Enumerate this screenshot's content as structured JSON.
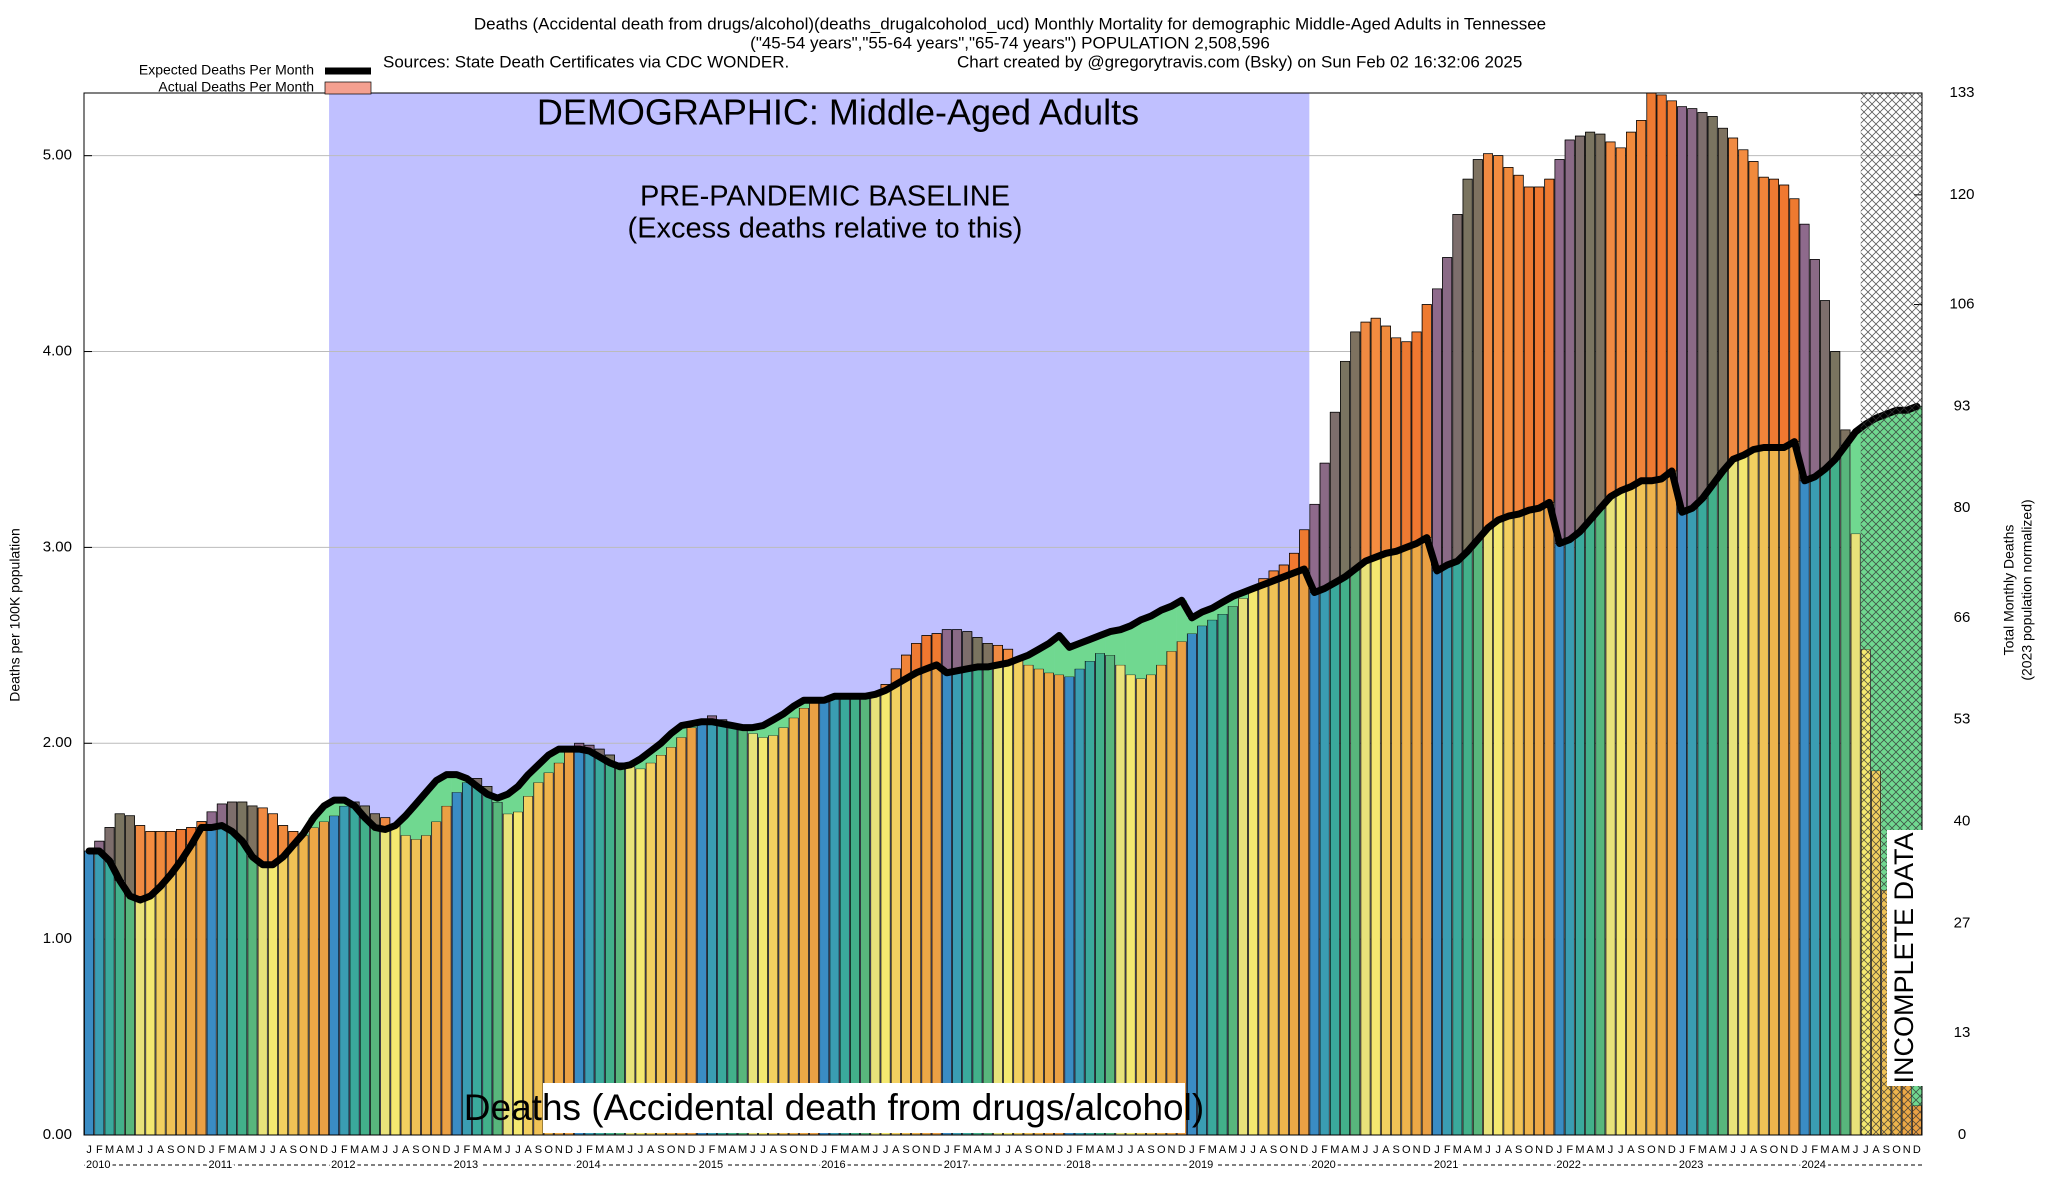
{
  "chart_data": {
    "type": "bar",
    "title": "Deaths (Accidental death from drugs/alcohol)(deaths_drugalcoholod_ucd) Monthly Mortality for demographic Middle-Aged Adults in Tennessee",
    "subtitle": "(\"45-54 years\",\"55-64 years\",\"65-74 years\") POPULATION 2,508,596",
    "sources": "Sources: State Death Certificates via CDC WONDER.",
    "credit": "Chart created by @gregorytravis.com (Bsky) on Sun Feb 02 16:32:06 2025",
    "annotations": {
      "demographic": "DEMOGRAPHIC: Middle-Aged Adults",
      "baseline": [
        "PRE-PANDEMIC BASELINE",
        "(Excess deaths relative to this)"
      ],
      "cause": "Deaths (Accidental death from drugs/alcohol)",
      "incomplete": "INCOMPLETE DATA"
    },
    "ylabel": "Deaths per 100K population",
    "y2label": [
      "Total Monthly Deaths",
      "(2023 population normalized)"
    ],
    "months": [
      "J",
      "F",
      "M",
      "A",
      "M",
      "J",
      "J",
      "A",
      "S",
      "O",
      "N",
      "D"
    ],
    "years": [
      "2010",
      "2011",
      "2012",
      "2013",
      "2014",
      "2015",
      "2016",
      "2017",
      "2018",
      "2019",
      "2020",
      "2021",
      "2022",
      "2023",
      "2024"
    ],
    "series": [
      {
        "name": "Expected Deaths Per Month",
        "color": "#000000",
        "values": [
          1.45,
          1.45,
          1.4,
          1.3,
          1.22,
          1.2,
          1.22,
          1.27,
          1.33,
          1.4,
          1.48,
          1.57,
          1.57,
          1.58,
          1.55,
          1.5,
          1.42,
          1.38,
          1.38,
          1.42,
          1.48,
          1.54,
          1.62,
          1.68,
          1.71,
          1.71,
          1.68,
          1.62,
          1.57,
          1.56,
          1.58,
          1.63,
          1.69,
          1.75,
          1.81,
          1.84,
          1.84,
          1.82,
          1.78,
          1.74,
          1.72,
          1.74,
          1.78,
          1.84,
          1.89,
          1.94,
          1.97,
          1.97,
          1.97,
          1.96,
          1.93,
          1.9,
          1.88,
          1.89,
          1.92,
          1.96,
          2.0,
          2.05,
          2.09,
          2.1,
          2.11,
          2.11,
          2.1,
          2.09,
          2.08,
          2.08,
          2.09,
          2.12,
          2.15,
          2.19,
          2.22,
          2.22,
          2.22,
          2.24,
          2.24,
          2.24,
          2.24,
          2.25,
          2.27,
          2.3,
          2.33,
          2.36,
          2.38,
          2.4,
          2.36,
          2.37,
          2.38,
          2.39,
          2.39,
          2.4,
          2.41,
          2.43,
          2.45,
          2.48,
          2.51,
          2.55,
          2.49,
          2.51,
          2.53,
          2.55,
          2.57,
          2.58,
          2.6,
          2.63,
          2.65,
          2.68,
          2.7,
          2.73,
          2.64,
          2.67,
          2.69,
          2.72,
          2.75,
          2.77,
          2.79,
          2.81,
          2.83,
          2.85,
          2.87,
          2.89,
          2.77,
          2.79,
          2.82,
          2.85,
          2.89,
          2.93,
          2.95,
          2.97,
          2.98,
          3.0,
          3.02,
          3.05,
          2.88,
          2.91,
          2.93,
          2.98,
          3.04,
          3.1,
          3.14,
          3.16,
          3.17,
          3.19,
          3.2,
          3.23,
          3.02,
          3.04,
          3.08,
          3.14,
          3.2,
          3.26,
          3.29,
          3.31,
          3.34,
          3.34,
          3.35,
          3.39,
          3.18,
          3.2,
          3.25,
          3.32,
          3.39,
          3.45,
          3.47,
          3.5,
          3.51,
          3.51,
          3.51,
          3.54,
          3.34,
          3.36,
          3.4,
          3.45,
          3.52,
          3.59,
          3.63,
          3.66,
          3.68,
          3.7,
          3.7,
          3.72
        ]
      },
      {
        "name": "Actual Deaths Per Month",
        "color": "#f4a090",
        "values": [
          1.45,
          1.5,
          1.57,
          1.64,
          1.63,
          1.58,
          1.55,
          1.55,
          1.55,
          1.56,
          1.57,
          1.6,
          1.65,
          1.69,
          1.7,
          1.7,
          1.68,
          1.67,
          1.64,
          1.58,
          1.55,
          1.53,
          1.57,
          1.6,
          1.63,
          1.68,
          1.7,
          1.68,
          1.64,
          1.62,
          1.58,
          1.53,
          1.51,
          1.53,
          1.6,
          1.68,
          1.75,
          1.8,
          1.82,
          1.78,
          1.7,
          1.64,
          1.65,
          1.73,
          1.8,
          1.85,
          1.9,
          1.96,
          2.0,
          1.99,
          1.97,
          1.94,
          1.9,
          1.88,
          1.87,
          1.9,
          1.94,
          1.98,
          2.03,
          2.08,
          2.12,
          2.14,
          2.12,
          2.1,
          2.08,
          2.05,
          2.03,
          2.04,
          2.08,
          2.13,
          2.18,
          2.23,
          2.22,
          2.24,
          2.24,
          2.24,
          2.24,
          2.25,
          2.3,
          2.38,
          2.45,
          2.51,
          2.55,
          2.56,
          2.58,
          2.58,
          2.57,
          2.54,
          2.51,
          2.5,
          2.48,
          2.43,
          2.4,
          2.38,
          2.36,
          2.35,
          2.34,
          2.38,
          2.42,
          2.46,
          2.45,
          2.4,
          2.35,
          2.33,
          2.35,
          2.4,
          2.47,
          2.52,
          2.56,
          2.6,
          2.63,
          2.66,
          2.7,
          2.74,
          2.79,
          2.84,
          2.88,
          2.91,
          2.97,
          3.09,
          3.22,
          3.43,
          3.69,
          3.95,
          4.1,
          4.15,
          4.17,
          4.13,
          4.07,
          4.05,
          4.1,
          4.24,
          4.32,
          4.48,
          4.7,
          4.88,
          4.98,
          5.01,
          5.0,
          4.94,
          4.9,
          4.84,
          4.84,
          4.88,
          4.98,
          5.08,
          5.1,
          5.12,
          5.11,
          5.07,
          5.04,
          5.12,
          5.18,
          5.32,
          5.31,
          5.28,
          5.25,
          5.24,
          5.22,
          5.2,
          5.14,
          5.09,
          5.03,
          4.97,
          4.89,
          4.88,
          4.85,
          4.78,
          4.65,
          4.47,
          4.26,
          4.0,
          3.6,
          3.07,
          2.48,
          1.86,
          1.25,
          0.68,
          0.38,
          0.15
        ]
      }
    ],
    "month_colors": [
      "#3a8cc4",
      "#3a9db2",
      "#3aa99c",
      "#42b08a",
      "#58b67c",
      "#e8e27a",
      "#f4e870",
      "#f2d060",
      "#f0c256",
      "#eeb44c",
      "#eca846",
      "#eaa044"
    ],
    "excess_colors": [
      "#8e6a8c",
      "#8a6a86",
      "#7d6e6c",
      "#7a7460",
      "#7e7260",
      "#f08a42",
      "#f48c40",
      "#f08a3c",
      "#f0843a",
      "#ee7a32",
      "#f07830",
      "#ee7a30"
    ],
    "deficit_color": "#70d890",
    "ylim": [
      0,
      5.32
    ],
    "yticks": [
      {
        "value": 0,
        "label": "0.00"
      },
      {
        "value": 1,
        "label": "1.00"
      },
      {
        "value": 2,
        "label": "2.00"
      },
      {
        "value": 3,
        "label": "3.00"
      },
      {
        "value": 4,
        "label": "4.00"
      },
      {
        "value": 5,
        "label": "5.00"
      }
    ],
    "y2lim": [
      0,
      133
    ],
    "y2ticks": [
      0,
      13,
      27,
      40,
      53,
      66,
      80,
      93,
      106,
      120,
      133
    ],
    "baseline_region": {
      "start": {
        "year": "2012",
        "month": 1
      },
      "end": {
        "year": "2019",
        "month": 12
      },
      "color": "#c0c0ff"
    },
    "incomplete_region": {
      "start": {
        "year": "2024",
        "month": 7
      }
    },
    "grid": true,
    "legend": "upper left"
  }
}
